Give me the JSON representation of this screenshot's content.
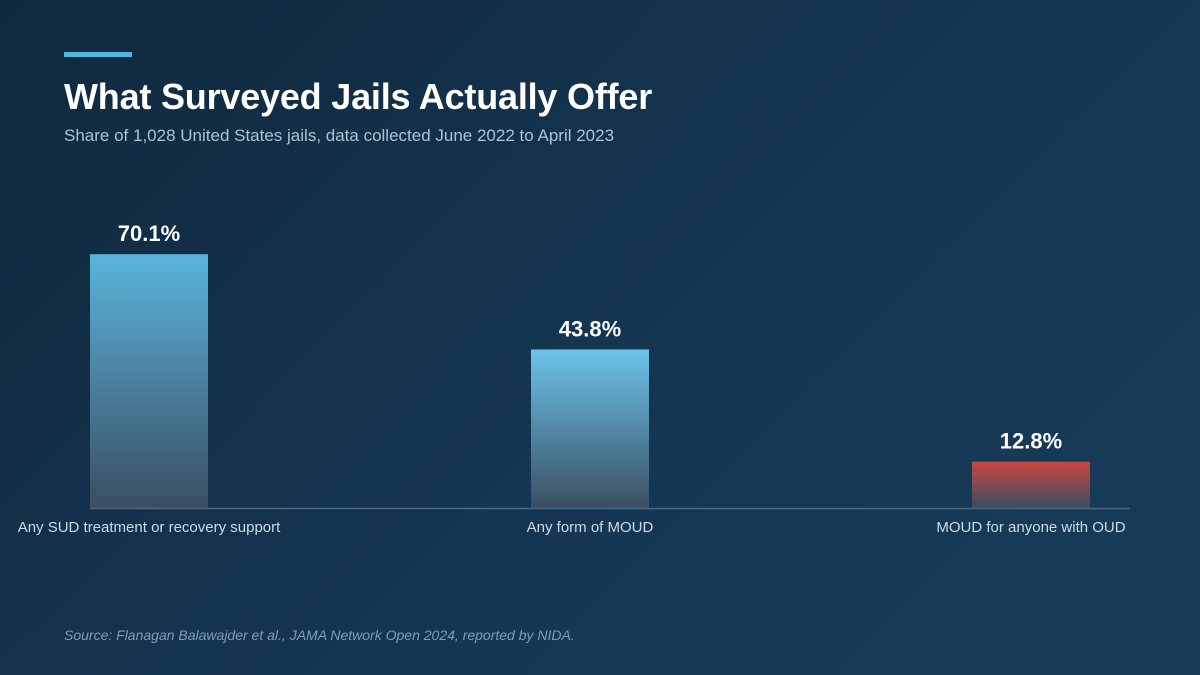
{
  "header": {
    "title": "What Surveyed Jails Actually Offer",
    "subtitle": "Share of 1,028 United States jails, data collected June 2022 to April 2023"
  },
  "footer": {
    "source": "Source: Flanagan Balawajder et al., JAMA Network Open 2024, reported by NIDA."
  },
  "colors": {
    "accent": "#4fb6e0",
    "bar_top": "#5ab4dc",
    "bar_top_highlight": "#6cc4ea",
    "bar_bottom": "#3a4e62",
    "bar_alert_top": "#c8473e",
    "axis": "#4b6880",
    "category_label": "#c9dbe8",
    "value_label": "#ffffff"
  },
  "chart_data": {
    "type": "bar",
    "categories": [
      "Any SUD treatment or recovery support",
      "Any form of MOUD",
      "MOUD for anyone with OUD"
    ],
    "values": [
      70.1,
      43.8,
      12.8
    ],
    "value_labels": [
      "70.1%",
      "43.8%",
      "12.8%"
    ],
    "highlight": [
      false,
      false,
      true
    ],
    "ylim": [
      0,
      100
    ],
    "grid": false,
    "legend": "none"
  }
}
